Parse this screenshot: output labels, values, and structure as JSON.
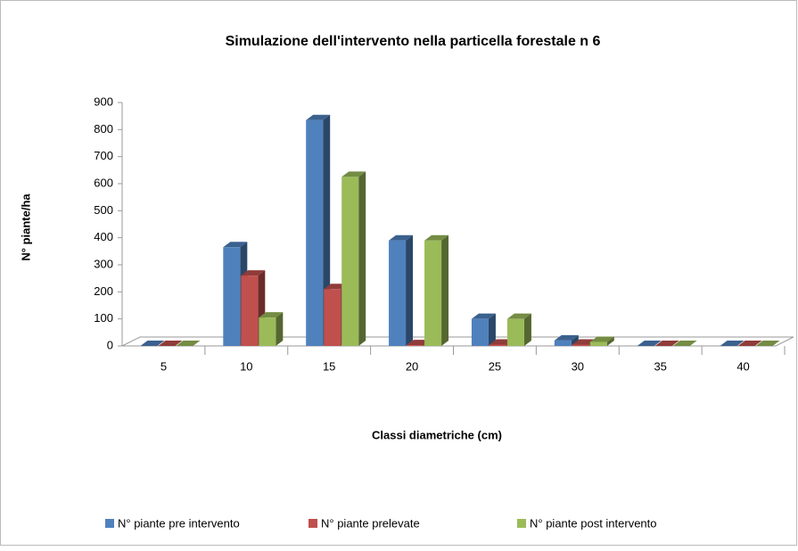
{
  "chart_data": {
    "type": "bar3d",
    "title": "Simulazione dell'intervento nella particella forestale n 6",
    "x_label": "Classi diametriche (cm)",
    "y_label": "N° piante/ha",
    "categories": [
      "5",
      "10",
      "15",
      "20",
      "25",
      "30",
      "35",
      "40"
    ],
    "series": [
      {
        "name": "N° piante pre intervento",
        "color": "#4f81bd",
        "values": [
          0,
          365,
          835,
          390,
          100,
          20,
          0,
          0
        ]
      },
      {
        "name": "N° piante prelevate",
        "color": "#c0504d",
        "values": [
          0,
          260,
          210,
          3,
          5,
          5,
          0,
          0
        ]
      },
      {
        "name": "N° piante post intervento",
        "color": "#9bbb59",
        "values": [
          0,
          105,
          625,
          390,
          100,
          15,
          0,
          0
        ]
      }
    ],
    "ylim": [
      0,
      900
    ],
    "yticks": [
      0,
      100,
      200,
      300,
      400,
      500,
      600,
      700,
      800,
      900
    ],
    "legend": "bottom"
  }
}
